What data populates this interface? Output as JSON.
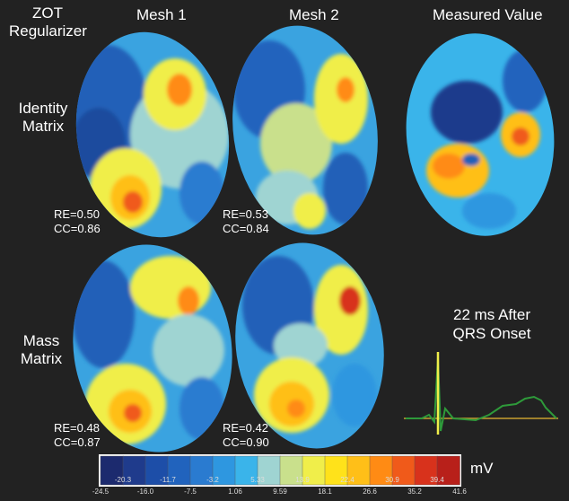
{
  "header": {
    "regularizer_line1": "ZOT",
    "regularizer_line2": "Regularizer",
    "col1": "Mesh 1",
    "col2": "Mesh 2",
    "col3": "Measured Value"
  },
  "rows": {
    "identity_line1": "Identity",
    "identity_line2": "Matrix",
    "mass_line1": "Mass",
    "mass_line2": "Matrix"
  },
  "stats": {
    "id_mesh1_re": "RE=0.50",
    "id_mesh1_cc": "CC=0.86",
    "id_mesh2_re": "RE=0.53",
    "id_mesh2_cc": "CC=0.84",
    "mass_mesh1_re": "RE=0.48",
    "mass_mesh1_cc": "CC=0.87",
    "mass_mesh2_re": "RE=0.42",
    "mass_mesh2_cc": "CC=0.90"
  },
  "timing": {
    "line1": "22 ms After",
    "line2": "QRS Onset"
  },
  "colorbar": {
    "unit": "mV",
    "colors": [
      "#1c2a6e",
      "#1f3b8c",
      "#1d4ea8",
      "#2163bd",
      "#2a7bd0",
      "#2e97e0",
      "#3ab4ea",
      "#9fd4d2",
      "#c9e08c",
      "#f0ee4a",
      "#ffe21a",
      "#ffbf18",
      "#ff8b14",
      "#f05a1a",
      "#d8321c",
      "#b8201a"
    ],
    "ticks_upper": [
      "-20.3",
      "-11.7",
      "-3.2",
      "5.33",
      "13.9",
      "22.4",
      "30.9",
      "39.4"
    ],
    "ticks_lower": [
      "-24.5",
      "-16.0",
      "-7.5",
      "1.06",
      "9.59",
      "18.1",
      "26.6",
      "35.2",
      "41.6"
    ]
  }
}
